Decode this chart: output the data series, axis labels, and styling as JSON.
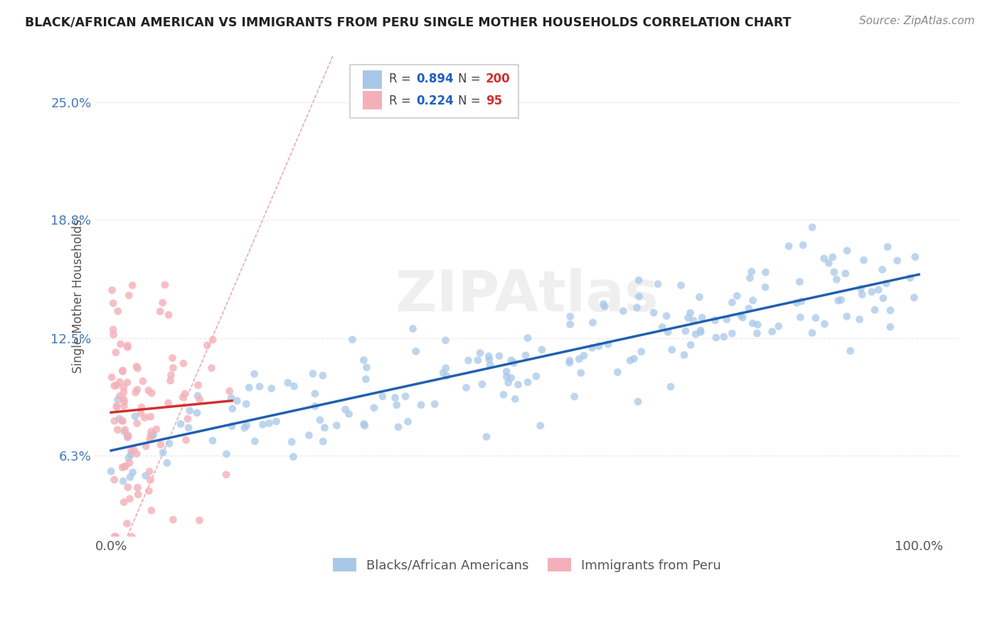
{
  "title": "BLACK/AFRICAN AMERICAN VS IMMIGRANTS FROM PERU SINGLE MOTHER HOUSEHOLDS CORRELATION CHART",
  "source": "Source: ZipAtlas.com",
  "ylabel": "Single Mother Households",
  "blue_R": 0.894,
  "blue_N": 200,
  "pink_R": 0.224,
  "pink_N": 95,
  "blue_color": "#a8c8e8",
  "pink_color": "#f4b0b8",
  "blue_line_color": "#2060b0",
  "pink_line_color": "#d03030",
  "diagonal_color": "#e8a0a0",
  "ytick_labels": [
    "6.3%",
    "12.5%",
    "18.8%",
    "25.0%"
  ],
  "ytick_values": [
    0.063,
    0.125,
    0.188,
    0.25
  ],
  "xtick_labels": [
    "0.0%",
    "100.0%"
  ],
  "xtick_values": [
    0.0,
    1.0
  ],
  "xlim": [
    -0.02,
    1.05
  ],
  "ylim": [
    0.02,
    0.275
  ],
  "watermark": "ZIPAtlas",
  "legend_labels": [
    "Blacks/African Americans",
    "Immigrants from Peru"
  ],
  "background_color": "#ffffff",
  "grid_color": "#e8e8e8",
  "blue_slope": 0.095,
  "blue_intercept": 0.065,
  "pink_slope": 0.04,
  "pink_intercept": 0.088
}
